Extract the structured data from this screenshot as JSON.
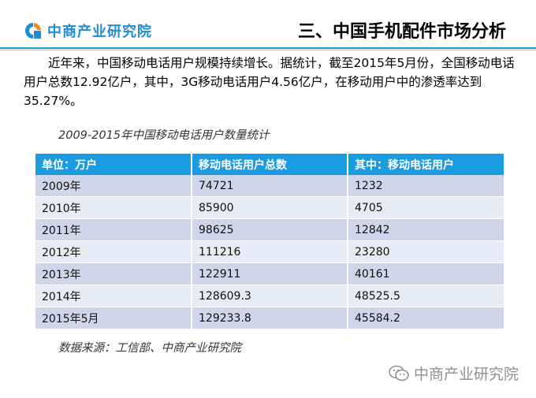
{
  "header": {
    "logo_text": "中商产业研究院",
    "section_title": "三、中国手机配件市场分析"
  },
  "intro": {
    "paragraph": "近年来，中国移动电话用户规模持续增长。据统计，截至2015年5月份，全国移动电话用户总数12.92亿户，其中，3G移动电话用户4.56亿户，在移动用户中的渗透率达到35.27%。"
  },
  "table": {
    "caption": "2009-2015年中国移动电话用户数量统计",
    "headers": [
      "单位：万户",
      "移动电话用户总数",
      "其中：移动电话用户"
    ],
    "rows": [
      [
        "2009年",
        "74721",
        "1232"
      ],
      [
        "2010年",
        "85900",
        "4705"
      ],
      [
        "2011年",
        "98625",
        "12842"
      ],
      [
        "2012年",
        "111216",
        "23280"
      ],
      [
        "2013年",
        "122911",
        "40161"
      ],
      [
        "2014年",
        "128609.3",
        "48525.5"
      ],
      [
        "2015年5月",
        "129233.8",
        "45584.2"
      ]
    ]
  },
  "source": "数据来源：工信部、中商产业研究院",
  "watermark": {
    "icon": "wechat-icon",
    "text": "中商产业研究院"
  },
  "colors": {
    "accent": "#1b9be0",
    "row_odd": "#cfd6ea",
    "row_even": "#e8ebf5"
  }
}
